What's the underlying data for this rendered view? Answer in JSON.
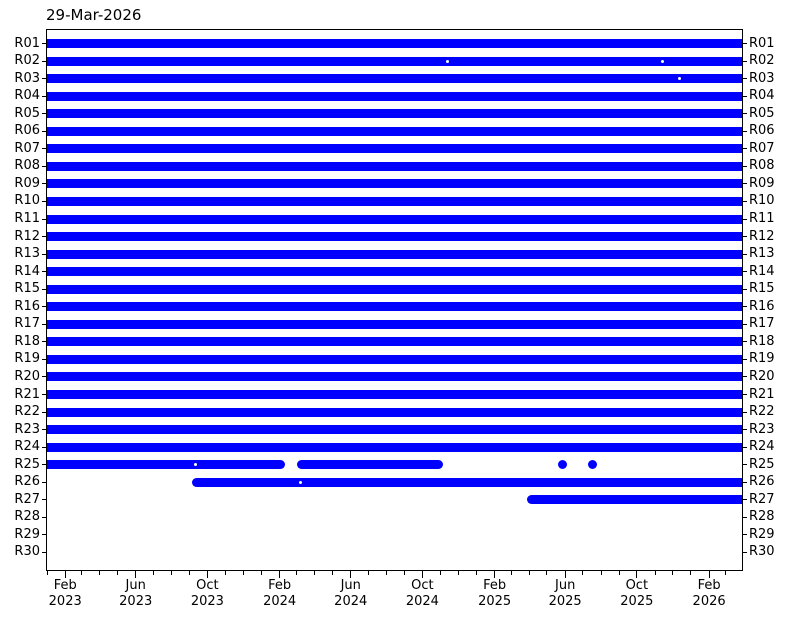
{
  "chart_data": {
    "type": "bar",
    "subtype": "event-timeline",
    "orientation": "horizontal",
    "title": "29-Mar-2026",
    "bar_color": "#0000ff",
    "background_color": "#ffffff",
    "grid": false,
    "legend": null,
    "rows": [
      "R01",
      "R02",
      "R03",
      "R04",
      "R05",
      "R06",
      "R07",
      "R08",
      "R09",
      "R10",
      "R11",
      "R12",
      "R13",
      "R14",
      "R15",
      "R16",
      "R17",
      "R18",
      "R19",
      "R20",
      "R21",
      "R22",
      "R23",
      "R24",
      "R25",
      "R26",
      "R27",
      "R28",
      "R29",
      "R30"
    ],
    "y_axis": {
      "label_sides": [
        "left",
        "right"
      ]
    },
    "x_axis": {
      "start": "2023-01-01",
      "end": "2026-03-29",
      "minor_tick_unit": "month",
      "major_ticks": [
        {
          "date": "2023-02-01",
          "month": "Feb",
          "year": "2023"
        },
        {
          "date": "2023-06-01",
          "month": "Jun",
          "year": "2023"
        },
        {
          "date": "2023-10-01",
          "month": "Oct",
          "year": "2023"
        },
        {
          "date": "2024-02-01",
          "month": "Feb",
          "year": "2024"
        },
        {
          "date": "2024-06-01",
          "month": "Jun",
          "year": "2024"
        },
        {
          "date": "2024-10-01",
          "month": "Oct",
          "year": "2024"
        },
        {
          "date": "2025-02-01",
          "month": "Feb",
          "year": "2025"
        },
        {
          "date": "2025-06-01",
          "month": "Jun",
          "year": "2025"
        },
        {
          "date": "2025-10-01",
          "month": "Oct",
          "year": "2025"
        },
        {
          "date": "2026-02-01",
          "month": "Feb",
          "year": "2026"
        }
      ]
    },
    "segments": {
      "R01": [
        [
          "2023-01-01",
          "2026-03-29"
        ]
      ],
      "R02": [
        [
          "2023-01-01",
          "2026-03-29"
        ]
      ],
      "R03": [
        [
          "2023-01-01",
          "2026-03-29"
        ]
      ],
      "R04": [
        [
          "2023-01-01",
          "2026-03-29"
        ]
      ],
      "R05": [
        [
          "2023-01-01",
          "2026-03-29"
        ]
      ],
      "R06": [
        [
          "2023-01-01",
          "2026-03-29"
        ]
      ],
      "R07": [
        [
          "2023-01-01",
          "2026-03-29"
        ]
      ],
      "R08": [
        [
          "2023-01-01",
          "2026-03-29"
        ]
      ],
      "R09": [
        [
          "2023-01-01",
          "2026-03-29"
        ]
      ],
      "R10": [
        [
          "2023-01-01",
          "2026-03-29"
        ]
      ],
      "R11": [
        [
          "2023-01-01",
          "2026-03-29"
        ]
      ],
      "R12": [
        [
          "2023-01-01",
          "2026-03-29"
        ]
      ],
      "R13": [
        [
          "2023-01-01",
          "2026-03-29"
        ]
      ],
      "R14": [
        [
          "2023-01-01",
          "2026-03-29"
        ]
      ],
      "R15": [
        [
          "2023-01-01",
          "2026-03-29"
        ]
      ],
      "R16": [
        [
          "2023-01-01",
          "2026-03-29"
        ]
      ],
      "R17": [
        [
          "2023-01-01",
          "2026-03-29"
        ]
      ],
      "R18": [
        [
          "2023-01-01",
          "2026-03-29"
        ]
      ],
      "R19": [
        [
          "2023-01-01",
          "2026-03-29"
        ]
      ],
      "R20": [
        [
          "2023-01-01",
          "2026-03-29"
        ]
      ],
      "R21": [
        [
          "2023-01-01",
          "2026-03-29"
        ]
      ],
      "R22": [
        [
          "2023-01-01",
          "2026-03-29"
        ]
      ],
      "R23": [
        [
          "2023-01-01",
          "2026-03-29"
        ]
      ],
      "R24": [
        [
          "2023-01-01",
          "2026-03-29"
        ]
      ],
      "R25": [
        [
          "2023-01-01",
          "2024-02-03"
        ],
        [
          "2024-03-10",
          "2024-10-28"
        ],
        [
          "2025-05-28",
          "2025-05-28"
        ],
        [
          "2025-07-18",
          "2025-07-18"
        ]
      ],
      "R26": [
        [
          "2023-09-12",
          "2026-03-29"
        ]
      ],
      "R27": [
        [
          "2025-04-05",
          "2026-03-29"
        ]
      ],
      "R28": [],
      "R29": [],
      "R30": []
    },
    "missing_day_gaps": {
      "R02": [
        "2024-11-13",
        "2025-11-14"
      ],
      "R03": [
        "2025-12-13"
      ],
      "R25": [
        "2023-09-11"
      ],
      "R26": [
        "2024-03-08"
      ]
    }
  }
}
